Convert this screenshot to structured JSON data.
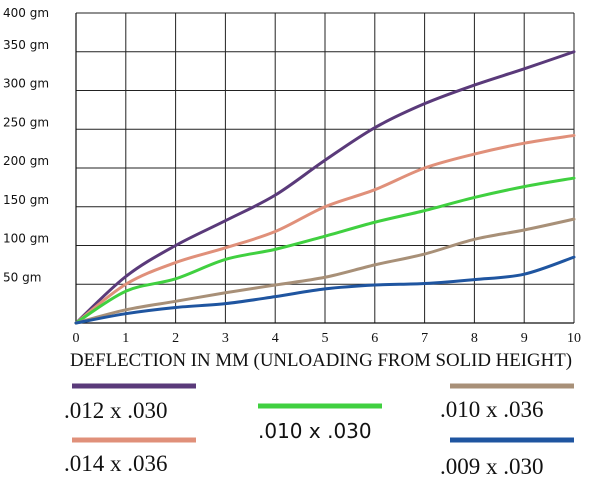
{
  "chart_data": {
    "type": "line",
    "title": "",
    "xlabel": "DEFLECTION IN MM  (UNLOADING FROM SOLID HEIGHT)",
    "ylabel": "",
    "x": [
      0,
      1,
      2,
      3,
      4,
      5,
      6,
      7,
      8,
      9,
      10
    ],
    "xlim": [
      0,
      10
    ],
    "ylim": [
      0,
      400
    ],
    "x_ticks": [
      "0",
      "1",
      "2",
      "3",
      "4",
      "5",
      "6",
      "7",
      "8",
      "9",
      "10"
    ],
    "y_ticks": [
      {
        "value": 50,
        "label": "50 gm"
      },
      {
        "value": 100,
        "label": "100 gm"
      },
      {
        "value": 150,
        "label": "150 gm"
      },
      {
        "value": 200,
        "label": "200 gm"
      },
      {
        "value": 250,
        "label": "250 gm"
      },
      {
        "value": 300,
        "label": "300 gm"
      },
      {
        "value": 350,
        "label": "350 gm"
      },
      {
        "value": 400,
        "label": "400 gm"
      }
    ],
    "grid": true,
    "legend_position": "bottom",
    "series": [
      {
        "name": ".012 x .030",
        "color": "#5a3a7a",
        "values": [
          0,
          60,
          100,
          132,
          165,
          210,
          252,
          283,
          307,
          328,
          350
        ]
      },
      {
        "name": ".014 x .036",
        "color": "#e0907a",
        "values": [
          0,
          50,
          78,
          97,
          118,
          150,
          172,
          200,
          218,
          232,
          242
        ]
      },
      {
        "name": ".010 x .030",
        "color": "#40d040",
        "values": [
          0,
          41,
          57,
          82,
          95,
          112,
          130,
          145,
          162,
          176,
          187
        ]
      },
      {
        "name": ".010 x .036",
        "color": "#a89078",
        "values": [
          0,
          17,
          28,
          39,
          49,
          59,
          75,
          89,
          108,
          120,
          134
        ]
      },
      {
        "name": ".009 x .030",
        "color": "#1f55a0",
        "values": [
          0,
          12,
          20,
          25,
          34,
          44,
          49,
          51,
          56,
          63,
          85
        ]
      }
    ]
  }
}
